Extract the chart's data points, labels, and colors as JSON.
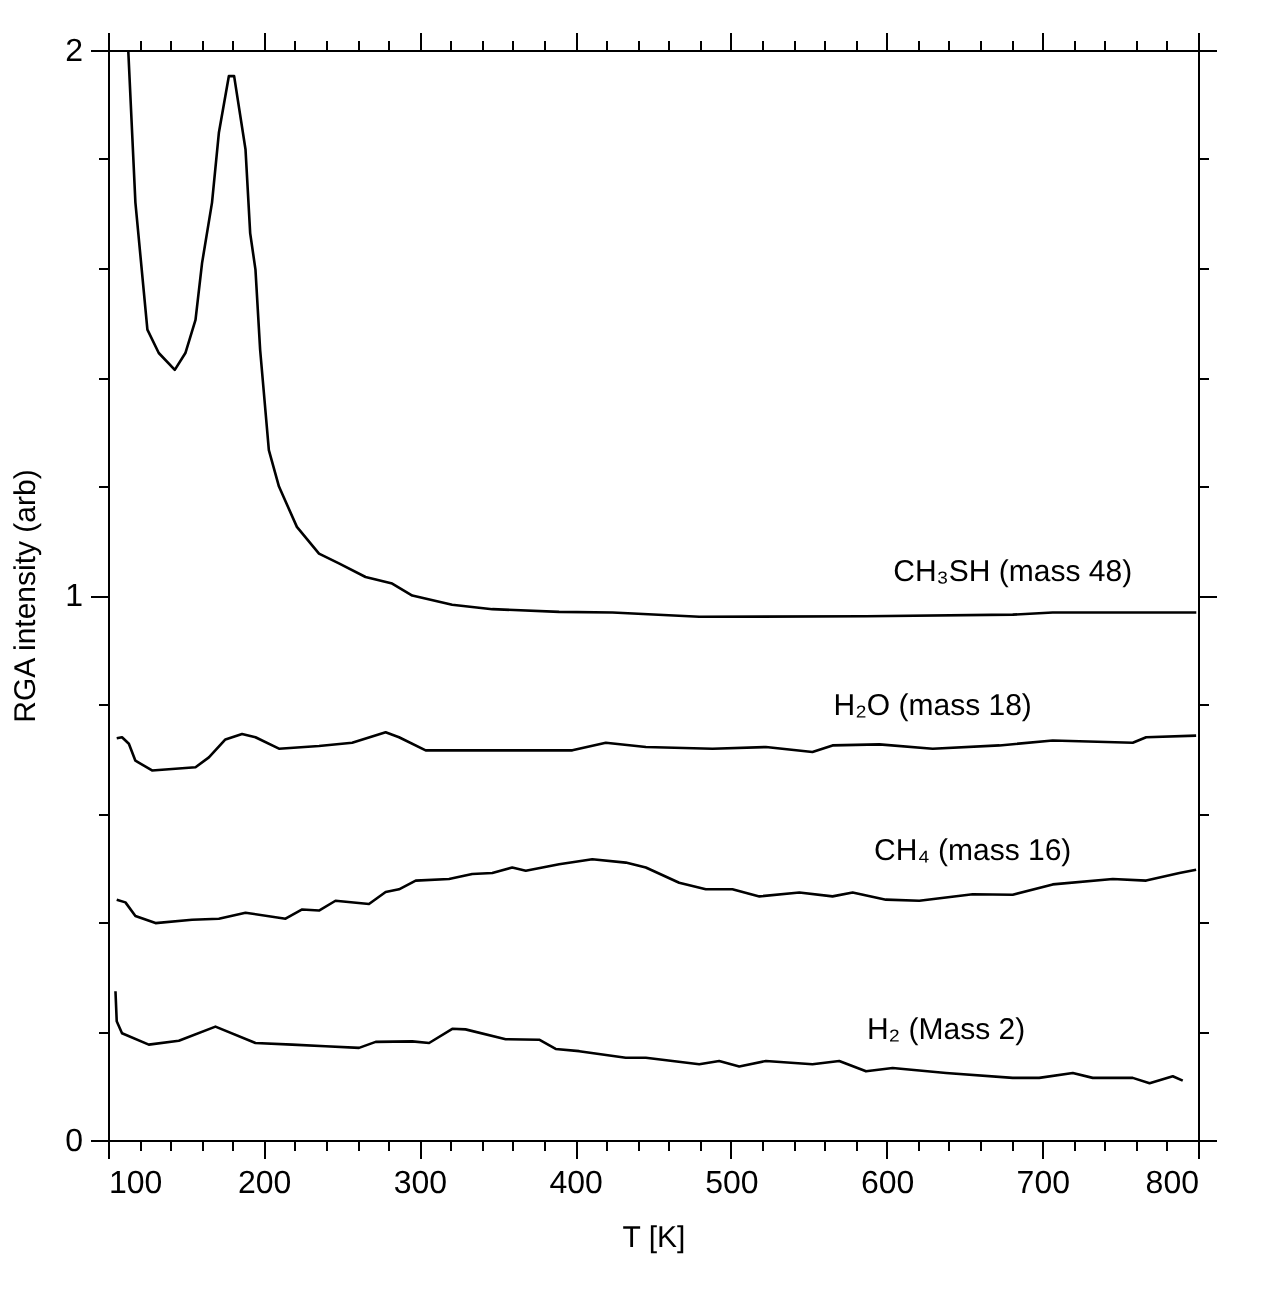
{
  "chart_data": {
    "type": "line",
    "xlabel": "T [K]",
    "ylabel": "RGA intensity (arb)",
    "xlim": [
      100,
      800
    ],
    "ylim": [
      0,
      2
    ],
    "xticks": [
      100,
      {
        "value": 120,
        "label": null
      },
      {
        "value": 140,
        "label": null
      },
      {
        "value": 160,
        "label": null
      },
      {
        "value": 180,
        "label": null
      },
      200,
      {
        "value": 220,
        "label": null
      },
      {
        "value": 240,
        "label": null
      },
      {
        "value": 260,
        "label": null
      },
      {
        "value": 280,
        "label": null
      },
      300,
      {
        "value": 320,
        "label": null
      },
      {
        "value": 340,
        "label": null
      },
      {
        "value": 360,
        "label": null
      },
      {
        "value": 380,
        "label": null
      },
      400,
      {
        "value": 420,
        "label": null
      },
      {
        "value": 440,
        "label": null
      },
      {
        "value": 460,
        "label": null
      },
      {
        "value": 480,
        "label": null
      },
      500,
      {
        "value": 520,
        "label": null
      },
      {
        "value": 540,
        "label": null
      },
      {
        "value": 560,
        "label": null
      },
      {
        "value": 580,
        "label": null
      },
      600,
      {
        "value": 620,
        "label": null
      },
      {
        "value": 640,
        "label": null
      },
      {
        "value": 660,
        "label": null
      },
      {
        "value": 680,
        "label": null
      },
      700,
      {
        "value": 720,
        "label": null
      },
      {
        "value": 740,
        "label": null
      },
      {
        "value": 760,
        "label": null
      },
      {
        "value": 780,
        "label": null
      },
      800
    ],
    "yticks": [
      0,
      {
        "value": 0.2,
        "label": null
      },
      {
        "value": 0.4,
        "label": null
      },
      {
        "value": 0.6,
        "label": null
      },
      {
        "value": 0.8,
        "label": null
      },
      1,
      {
        "value": 1.2,
        "label": null
      },
      {
        "value": 1.4,
        "label": null
      },
      {
        "value": 1.6,
        "label": null
      },
      {
        "value": 1.8,
        "label": null
      },
      2
    ],
    "grid": false,
    "legend": false,
    "marker": "none",
    "line_style": "solid",
    "series": [
      {
        "name": "CH₃SH (mass 48)",
        "color": "#000000",
        "x": [
          113,
          117.6,
          125.3,
          132.6,
          142.9,
          149.7,
          156.2,
          160.4,
          166.8,
          171.2,
          177.6,
          181,
          188.3,
          191.3,
          194.7,
          197.7,
          203.3,
          209.8,
          221.3,
          235.5,
          248.3,
          265.4,
          282.5,
          295.4,
          321,
          346.8,
          389.7,
          424,
          479.7,
          586.8,
          681,
          706.7,
          798.9
        ],
        "values": [
          2.0,
          1.72,
          1.487,
          1.444,
          1.413,
          1.444,
          1.505,
          1.609,
          1.72,
          1.848,
          1.952,
          1.952,
          1.818,
          1.664,
          1.597,
          1.45,
          1.266,
          1.199,
          1.125,
          1.076,
          1.058,
          1.033,
          1.021,
          0.999,
          0.982,
          0.974,
          0.969,
          0.968,
          0.96,
          0.961,
          0.964,
          0.968,
          0.968
        ]
      },
      {
        "name": "H₂O (mass 18)",
        "color": "#000000",
        "x": [
          105.6,
          109,
          113.4,
          117.6,
          128.3,
          156.2,
          164.8,
          175.4,
          186.1,
          194.7,
          209.8,
          235.5,
          256.8,
          278.3,
          286.9,
          304,
          346.8,
          398.2,
          419.7,
          445.4,
          488.2,
          522.5,
          552.4,
          565.3,
          595.4,
          629.6,
          672.5,
          706.7,
          758.1,
          766.7,
          798.8
        ],
        "values": [
          0.737,
          0.739,
          0.727,
          0.696,
          0.678,
          0.684,
          0.702,
          0.735,
          0.745,
          0.739,
          0.718,
          0.723,
          0.729,
          0.748,
          0.739,
          0.715,
          0.715,
          0.715,
          0.729,
          0.721,
          0.718,
          0.721,
          0.712,
          0.724,
          0.726,
          0.718,
          0.724,
          0.733,
          0.729,
          0.739,
          0.742
        ]
      },
      {
        "name": "CH₄ (mass 16)",
        "color": "#000000",
        "x": [
          105.6,
          111.2,
          117.6,
          130.5,
          154,
          171.2,
          188.3,
          214,
          224.7,
          235.5,
          246.1,
          267.6,
          278.3,
          286.9,
          297.6,
          319,
          333.9,
          346.8,
          359.6,
          368.3,
          389.7,
          411,
          432.5,
          445.4,
          466.8,
          483.9,
          501,
          518.3,
          544,
          565.3,
          578.2,
          599.6,
          621,
          655.3,
          681,
          706.7,
          745.3,
          766.7,
          788.1,
          798.8
        ],
        "values": [
          0.441,
          0.436,
          0.411,
          0.398,
          0.404,
          0.406,
          0.417,
          0.406,
          0.423,
          0.421,
          0.439,
          0.433,
          0.455,
          0.46,
          0.476,
          0.479,
          0.488,
          0.49,
          0.5,
          0.494,
          0.506,
          0.515,
          0.509,
          0.5,
          0.472,
          0.46,
          0.46,
          0.447,
          0.454,
          0.447,
          0.454,
          0.441,
          0.439,
          0.451,
          0.45,
          0.469,
          0.479,
          0.476,
          0.49,
          0.496
        ]
      },
      {
        "name": "H₂ (Mass 2)",
        "color": "#000000",
        "x": [
          104.8,
          105.6,
          109,
          126.2,
          145.5,
          169,
          194.7,
          218.3,
          239.7,
          261.2,
          271.9,
          295.4,
          306.2,
          321.1,
          329.6,
          355.4,
          376.9,
          387.5,
          402.6,
          432.5,
          445.4,
          479.7,
          492.5,
          505.4,
          522.5,
          552.4,
          569.6,
          586.8,
          603.9,
          638.2,
          681,
          698,
          719.6,
          732.4,
          758.1,
          768.9,
          783.8,
          790.2
        ],
        "values": [
          0.273,
          0.218,
          0.196,
          0.175,
          0.182,
          0.208,
          0.178,
          0.175,
          0.172,
          0.169,
          0.18,
          0.181,
          0.178,
          0.204,
          0.203,
          0.185,
          0.184,
          0.167,
          0.163,
          0.151,
          0.151,
          0.139,
          0.145,
          0.135,
          0.145,
          0.139,
          0.145,
          0.126,
          0.132,
          0.123,
          0.114,
          0.114,
          0.123,
          0.114,
          0.114,
          0.104,
          0.117,
          0.109
        ]
      }
    ]
  }
}
